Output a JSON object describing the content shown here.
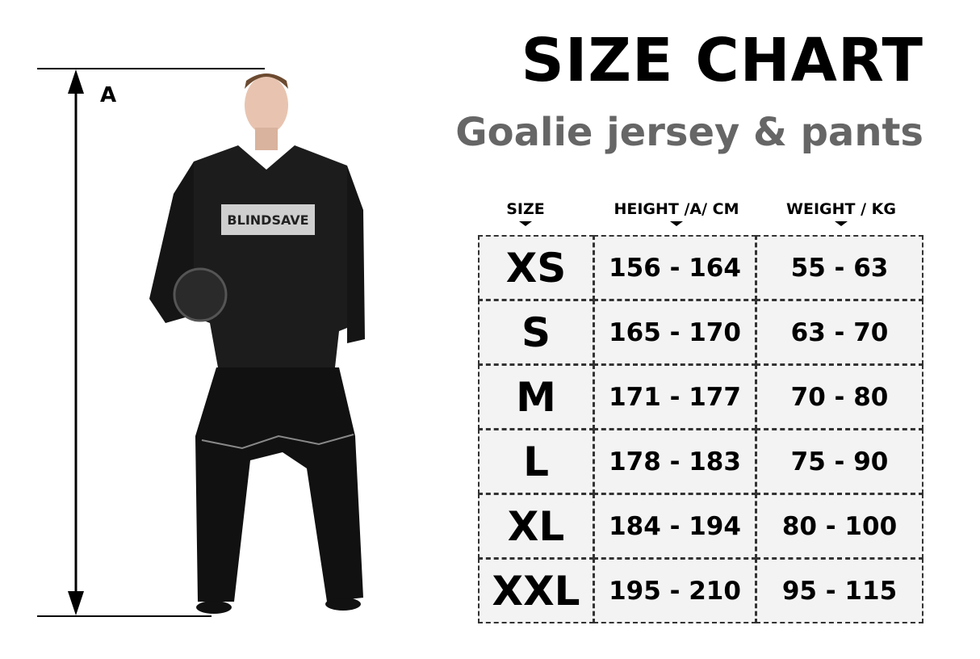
{
  "title": "SIZE CHART",
  "subtitle": "Goalie jersey & pants",
  "measure_label": "A",
  "logo_text": "BLINDSAVE",
  "table": {
    "headers": [
      "SIZE",
      "HEIGHT /A/ CM",
      "WEIGHT / KG"
    ],
    "rows": [
      [
        "XS",
        "156 - 164",
        "55 - 63"
      ],
      [
        "S",
        "165 - 170",
        "63 - 70"
      ],
      [
        "M",
        "171 - 177",
        "70 - 80"
      ],
      [
        "L",
        "178 - 183",
        "75 - 90"
      ],
      [
        "XL",
        "184 - 194",
        "80 - 100"
      ],
      [
        "XXL",
        "195 - 210",
        "95 - 115"
      ]
    ]
  },
  "colors": {
    "cell_bg": "#f3f3f3",
    "subtitle": "#666666",
    "jersey": "#1c1c1c"
  }
}
